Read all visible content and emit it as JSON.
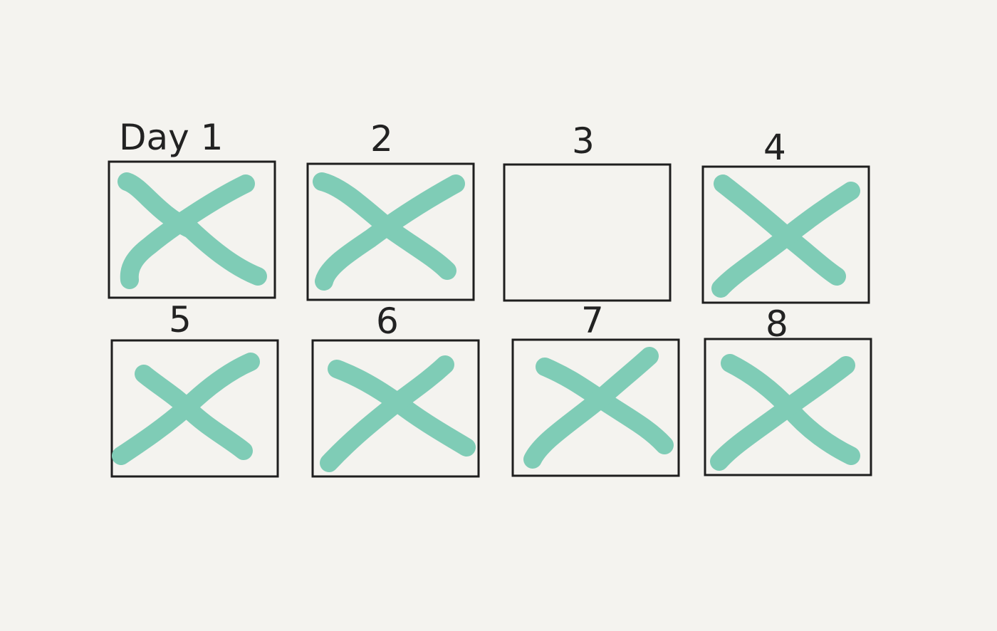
{
  "mark_color": "#7fccb6",
  "box_color": "#1e1e1e",
  "background_color": "#f4f3ef",
  "days": [
    {
      "label": "Day 1",
      "completed": true
    },
    {
      "label": "2",
      "completed": true
    },
    {
      "label": "3",
      "completed": false
    },
    {
      "label": "4",
      "completed": true
    },
    {
      "label": "5",
      "completed": true
    },
    {
      "label": "6",
      "completed": true
    },
    {
      "label": "7",
      "completed": true
    },
    {
      "label": "8",
      "completed": true
    }
  ]
}
